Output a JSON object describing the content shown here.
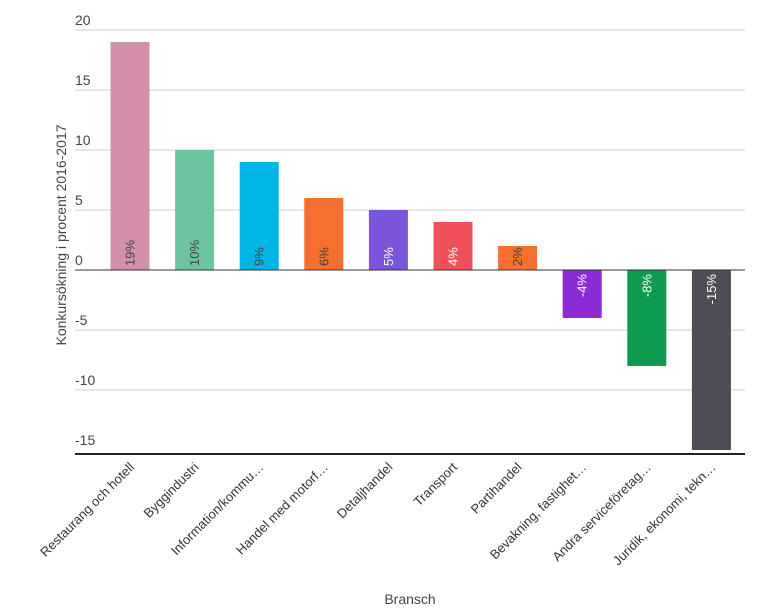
{
  "chart_data": {
    "type": "bar",
    "title": "",
    "xlabel": "Bransch",
    "ylabel": "Konkursökning i procent 2016-2017",
    "ylim": [
      -15,
      20
    ],
    "yticks": [
      20,
      15,
      10,
      5,
      0,
      -5,
      -10,
      -15
    ],
    "grid": true,
    "legend": "none",
    "categories": [
      "Restaurang och hotell",
      "Byggindustri",
      "Information/kommu…",
      "Handel med motorf…",
      "Detaljhandel",
      "Transport",
      "Partihandel",
      "Bevakning, fastighet…",
      "Andra serviceföretag…",
      "Juridik, ekonomi, tekn…"
    ],
    "values": [
      19,
      10,
      9,
      6,
      5,
      4,
      2,
      -4,
      -8,
      -15
    ],
    "data_labels": [
      "19%",
      "10%",
      "9%",
      "6%",
      "5%",
      "4%",
      "2%",
      "-4%",
      "-8%",
      "-15%"
    ],
    "colors": [
      "#d48fab",
      "#6cc4a0",
      "#00b4e6",
      "#f5702e",
      "#7b55d9",
      "#f0505a",
      "#f5702e",
      "#8a2bd6",
      "#0f9a52",
      "#4d4d55"
    ],
    "label_colors": [
      "#444444",
      "#444444",
      "#444444",
      "#444444",
      "#ffffff",
      "#ffffff",
      "#444444",
      "#ffffff",
      "#ffffff",
      "#ffffff"
    ]
  }
}
